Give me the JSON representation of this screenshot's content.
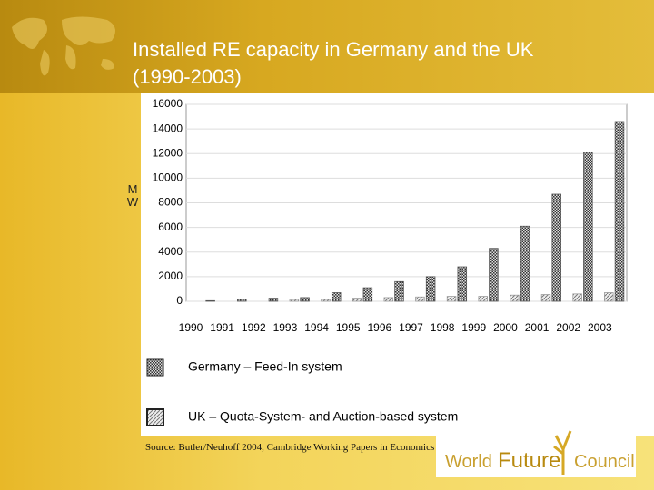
{
  "chart_data": {
    "type": "bar",
    "title": "Installed RE capacity in Germany and the UK (1990-2003)",
    "y_label": "MW",
    "categories": [
      "1990",
      "1991",
      "1992",
      "1993",
      "1994",
      "1995",
      "1996",
      "1997",
      "1998",
      "1999",
      "2000",
      "2001",
      "2002",
      "2003"
    ],
    "series": [
      {
        "name": "UK – Quota-System- and Auction-based system",
        "color": "#9a9a9a",
        "values": [
          0,
          0,
          0,
          150,
          150,
          250,
          300,
          350,
          400,
          400,
          500,
          550,
          600,
          700
        ]
      },
      {
        "name": "Germany – Feed-In system",
        "color": "#555555",
        "values": [
          50,
          150,
          250,
          300,
          700,
          1100,
          1600,
          2000,
          2800,
          4300,
          6100,
          8700,
          12100,
          14600
        ]
      }
    ],
    "ylim": [
      0,
      16000
    ],
    "yticks": [
      0,
      2000,
      4000,
      6000,
      8000,
      10000,
      12000,
      14000,
      16000
    ],
    "grid": true,
    "source": "Source: Butler/Neuhoff 2004, Cambridge Working Papers in Economics"
  },
  "logo": {
    "word1": "World",
    "word2": "Future",
    "word3": "Council"
  }
}
